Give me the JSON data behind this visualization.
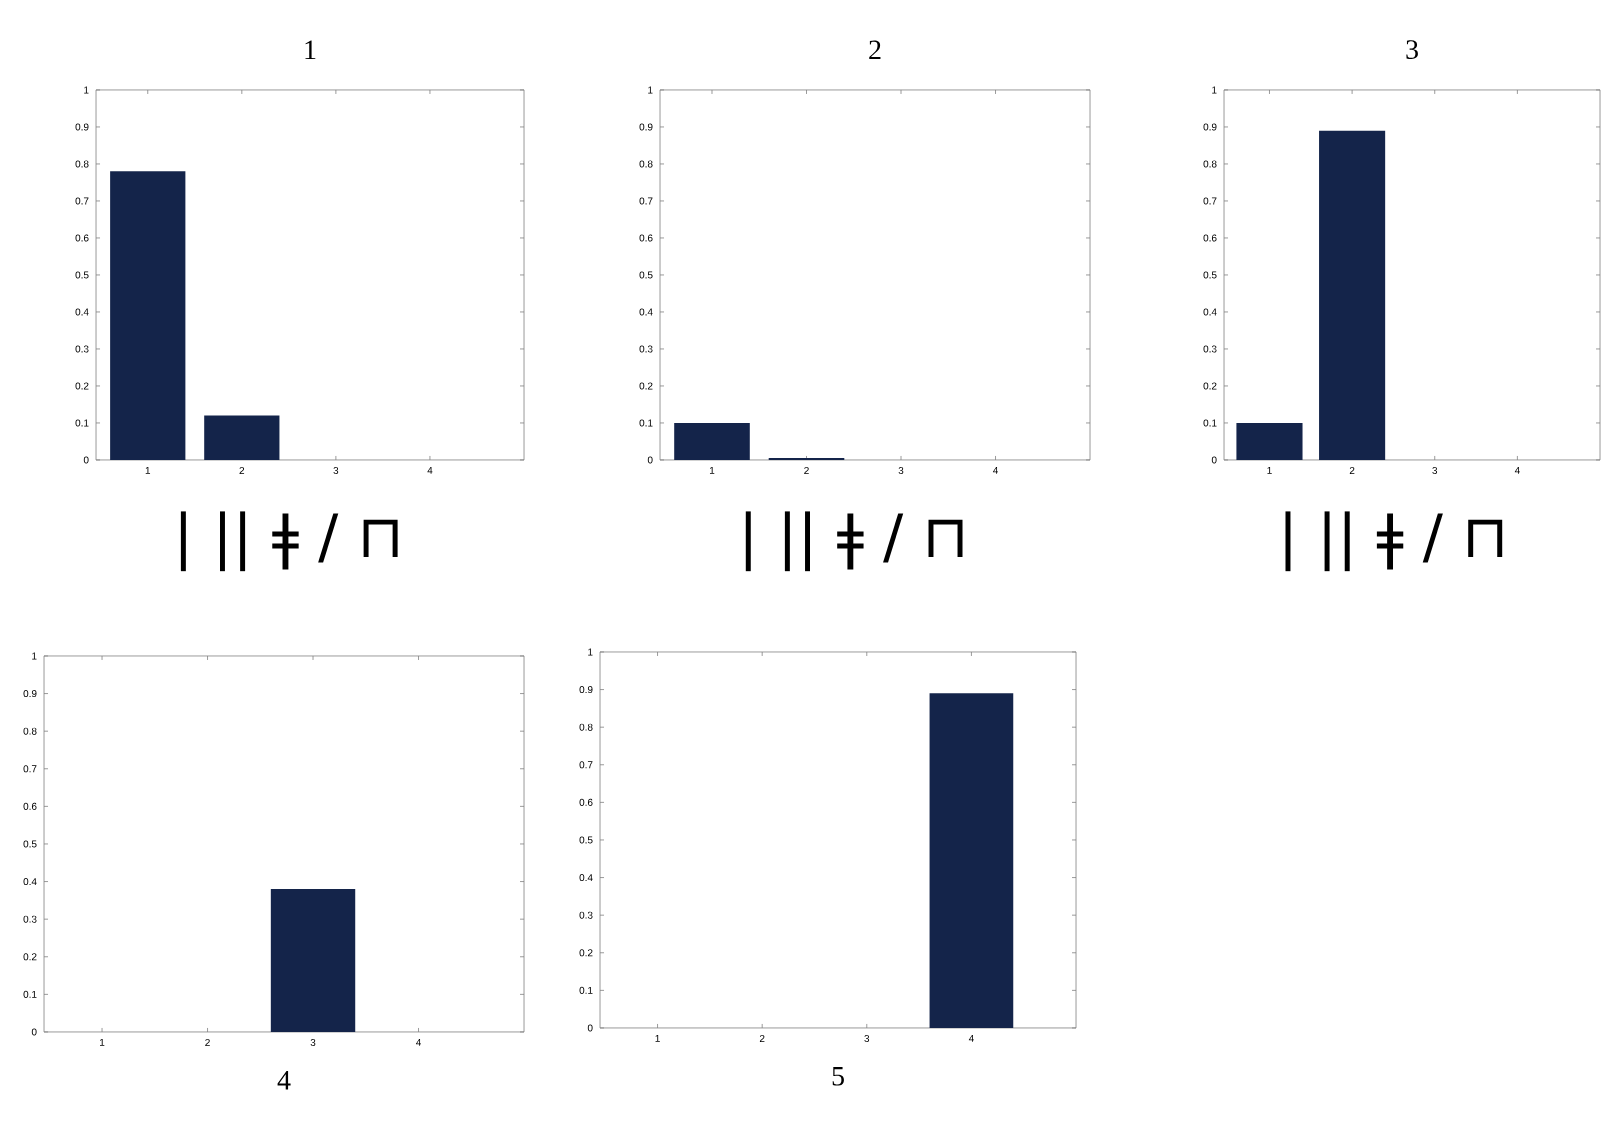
{
  "chart_data": [
    {
      "type": "bar",
      "title": "1",
      "categories": [
        "1",
        "2",
        "3",
        "4"
      ],
      "values": [
        0.78,
        0.12,
        0,
        0
      ],
      "color": "#14244a",
      "ylim": [
        0,
        1
      ],
      "yticks": [
        0,
        0.1,
        0.2,
        0.3,
        0.4,
        0.5,
        0.6,
        0.7,
        0.8,
        0.9,
        1
      ],
      "annotations": [
        "| || ǂ / ⊓"
      ]
    },
    {
      "type": "bar",
      "title": "2",
      "categories": [
        "1",
        "2",
        "3",
        "4"
      ],
      "values": [
        0.1,
        0.005,
        0,
        0
      ],
      "color": "#14244a",
      "ylim": [
        0,
        1
      ],
      "yticks": [
        0,
        0.1,
        0.2,
        0.3,
        0.4,
        0.5,
        0.6,
        0.7,
        0.8,
        0.9,
        1
      ],
      "annotations": [
        "| || ǂ / ⊓"
      ]
    },
    {
      "type": "bar",
      "title": "3",
      "categories": [
        "1",
        "2",
        "3",
        "4"
      ],
      "values": [
        0.1,
        0.89,
        0,
        0
      ],
      "color": "#14244a",
      "ylim": [
        0,
        1
      ],
      "yticks": [
        0,
        0.1,
        0.2,
        0.3,
        0.4,
        0.5,
        0.6,
        0.7,
        0.8,
        0.9,
        1
      ],
      "annotations": [
        "| || ǂ / ⊓"
      ]
    },
    {
      "type": "bar",
      "title": "4",
      "categories": [
        "1",
        "2",
        "3",
        "4"
      ],
      "values": [
        0,
        0,
        0.38,
        0
      ],
      "color": "#14244a",
      "ylim": [
        0,
        1
      ],
      "yticks": [
        0,
        0.1,
        0.2,
        0.3,
        0.4,
        0.5,
        0.6,
        0.7,
        0.8,
        0.9,
        1
      ]
    },
    {
      "type": "bar",
      "title": "5",
      "categories": [
        "1",
        "2",
        "3",
        "4"
      ],
      "values": [
        0,
        0,
        0,
        0.89
      ],
      "color": "#14244a",
      "ylim": [
        0,
        1
      ],
      "yticks": [
        0,
        0.1,
        0.2,
        0.3,
        0.4,
        0.5,
        0.6,
        0.7,
        0.8,
        0.9,
        1
      ]
    }
  ]
}
